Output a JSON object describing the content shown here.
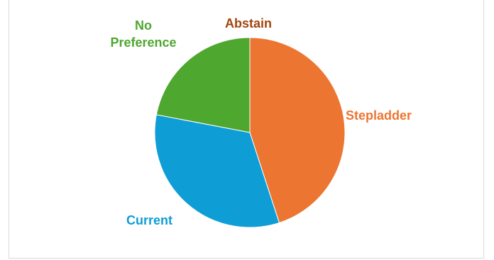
{
  "chart_data": {
    "type": "pie",
    "title": "",
    "categories": [
      "Stepladder",
      "Current",
      "No Preference",
      "Abstain"
    ],
    "values": [
      45,
      33,
      22,
      0
    ],
    "colors": [
      "#ED7532",
      "#0E9ED5",
      "#4EA72E",
      "#A0450E"
    ],
    "start_angle": "12 o'clock",
    "direction": "clockwise",
    "labels": {
      "stepladder": "Stepladder",
      "current": "Current",
      "no_preference": "No Preference",
      "abstain": "Abstain"
    }
  }
}
